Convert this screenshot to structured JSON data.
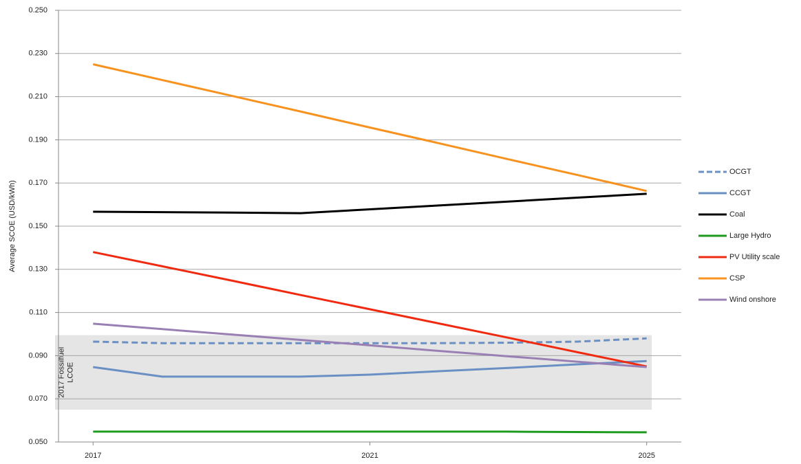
{
  "chart_data": {
    "type": "line",
    "y_label": "Average SCOE (USD/kWh)",
    "x": [
      2017,
      2018,
      2019,
      2020,
      2021,
      2022,
      2023,
      2024,
      2025
    ],
    "xlim": [
      2016.5,
      2025.5
    ],
    "xticks": [
      2017,
      2021,
      2025
    ],
    "ylim": [
      0.05,
      0.25
    ],
    "yticks": [
      {
        "value": 0.05,
        "label": "0.050"
      },
      {
        "value": 0.07,
        "label": "0.070"
      },
      {
        "value": 0.09,
        "label": "0.090"
      },
      {
        "value": 0.11,
        "label": "0.110"
      },
      {
        "value": 0.13,
        "label": "0.130"
      },
      {
        "value": 0.15,
        "label": "0.150"
      },
      {
        "value": 0.17,
        "label": "0.170"
      },
      {
        "value": 0.19,
        "label": "0.190"
      },
      {
        "value": 0.21,
        "label": "0.210"
      },
      {
        "value": 0.23,
        "label": "0.230"
      },
      {
        "value": 0.25,
        "label": "0.250"
      }
    ],
    "grid": true,
    "legend": "right",
    "band": {
      "label": "2017 Fossil fuel LCOE",
      "range": [
        0.065,
        0.0995
      ],
      "color": "#e4e5e4"
    },
    "series": [
      {
        "name": "OCGT",
        "color": "#6a8fc4",
        "style": "dashed",
        "values": [
          0.0965,
          0.0958,
          0.0958,
          0.0958,
          0.0958,
          0.0958,
          0.096,
          0.0965,
          0.098
        ]
      },
      {
        "name": "CCGT",
        "color": "#6a8fc4",
        "values": [
          0.0847,
          0.0803,
          0.0803,
          0.0803,
          0.0812,
          0.0828,
          0.0843,
          0.086,
          0.0875
        ]
      },
      {
        "name": "Coal",
        "color": "#000000",
        "values": [
          0.1567,
          0.1565,
          0.1563,
          0.156,
          0.1578,
          0.1596,
          0.1614,
          0.1632,
          0.165
        ]
      },
      {
        "name": "Large Hydro",
        "color": "#1e9a1e",
        "values": [
          0.0548,
          0.0548,
          0.0548,
          0.0548,
          0.0548,
          0.0548,
          0.0548,
          0.0546,
          0.0545
        ]
      },
      {
        "name": "PV Utility  scale",
        "color": "#f02a10",
        "values": [
          0.138,
          0.1314,
          0.1248,
          0.1181,
          0.1115,
          0.1049,
          0.0983,
          0.0916,
          0.085
        ]
      },
      {
        "name": "CSP",
        "color": "#f7921e",
        "values": [
          0.225,
          0.2177,
          0.2104,
          0.2031,
          0.1957,
          0.1884,
          0.181,
          0.1737,
          0.1663
        ]
      },
      {
        "name": "Wind onshore",
        "color": "#9a7fb5",
        "values": [
          0.1048,
          0.1023,
          0.0998,
          0.0973,
          0.0948,
          0.0922,
          0.0897,
          0.0872,
          0.0847
        ]
      }
    ]
  }
}
